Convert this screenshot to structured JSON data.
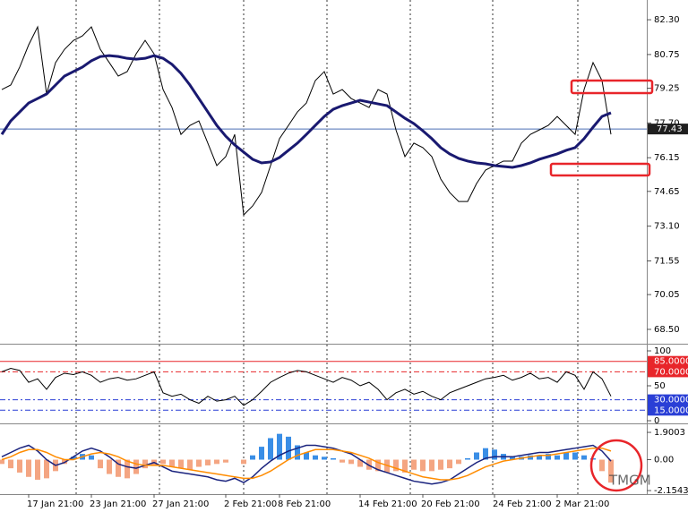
{
  "chart_data": [
    {
      "type": "line",
      "categories": [
        null,
        null,
        null,
        "17 Jan 21:00",
        null,
        null,
        null,
        null,
        null,
        null,
        "23 Jan 21:00",
        null,
        null,
        null,
        null,
        null,
        null,
        "27 Jan 21:00",
        null,
        null,
        null,
        null,
        null,
        null,
        null,
        "2 Feb 21:00",
        null,
        null,
        null,
        null,
        null,
        "8 Feb 21:00",
        null,
        null,
        null,
        null,
        null,
        null,
        null,
        null,
        "14 Feb 21:00",
        null,
        null,
        null,
        null,
        null,
        null,
        "20 Feb 21:00",
        null,
        null,
        null,
        null,
        null,
        null,
        null,
        "24 Feb 21:00",
        null,
        null,
        null,
        null,
        null,
        null,
        "2 Mar 21:00",
        null,
        null,
        null,
        null,
        null,
        null
      ],
      "series": [
        {
          "color": "#000000",
          "values": [
            79.19,
            79.39,
            80.19,
            81.18,
            81.98,
            78.99,
            80.39,
            80.98,
            81.38,
            81.58,
            81.98,
            80.98,
            80.39,
            79.79,
            79.99,
            80.78,
            81.38,
            80.78,
            79.19,
            78.39,
            77.19,
            77.59,
            77.79,
            76.8,
            75.8,
            76.2,
            77.19,
            73.6,
            74.0,
            74.6,
            75.8,
            77.0,
            77.59,
            78.19,
            78.59,
            79.59,
            79.99,
            78.99,
            79.19,
            78.79,
            78.59,
            78.39,
            79.19,
            78.99,
            77.39,
            76.2,
            76.8,
            76.6,
            76.2,
            75.2,
            74.6,
            74.2,
            74.2,
            75.0,
            75.6,
            75.8,
            76.0,
            76.0,
            76.8,
            77.19,
            77.39,
            77.59,
            77.99,
            77.59,
            77.19,
            79.19,
            80.39,
            79.59,
            77.19
          ]
        },
        {
          "color": "#191970",
          "values": [
            77.19,
            77.79,
            78.19,
            78.59,
            78.79,
            78.99,
            79.39,
            79.79,
            79.99,
            80.19,
            80.47,
            80.66,
            80.7,
            80.66,
            80.58,
            80.54,
            80.58,
            80.7,
            80.58,
            80.31,
            79.91,
            79.39,
            78.79,
            78.19,
            77.59,
            77.11,
            76.72,
            76.4,
            76.08,
            75.92,
            75.96,
            76.16,
            76.48,
            76.8,
            77.19,
            77.59,
            77.99,
            78.31,
            78.47,
            78.59,
            78.71,
            78.63,
            78.55,
            78.47,
            78.19,
            77.91,
            77.67,
            77.35,
            77.0,
            76.6,
            76.32,
            76.12,
            76.0,
            75.92,
            75.88,
            75.8,
            75.76,
            75.72,
            75.8,
            75.92,
            76.08,
            76.2,
            76.32,
            76.48,
            76.6,
            77.0,
            77.51,
            77.99,
            78.15
          ]
        }
      ],
      "current_price": 77.43,
      "ylim": [
        67.9,
        83.18
      ],
      "yticks": [
        {
          "value": 82.3,
          "label": "82.30"
        },
        80.75,
        79.25,
        {
          "value": 77.7,
          "label": "77.70"
        },
        76.15,
        74.65,
        {
          "value": 73.1,
          "label": "73.10"
        },
        71.55,
        70.05,
        {
          "value": 68.5,
          "label": "68.50"
        }
      ]
    },
    {
      "type": "line",
      "series": [
        {
          "color": "#000000",
          "values": [
            70,
            75,
            72,
            55,
            60,
            45,
            62,
            68,
            66,
            70,
            65,
            55,
            60,
            62,
            58,
            60,
            65,
            70,
            40,
            35,
            38,
            30,
            25,
            35,
            28,
            30,
            35,
            22,
            30,
            42,
            55,
            62,
            68,
            72,
            70,
            65,
            60,
            55,
            62,
            58,
            50,
            55,
            45,
            30,
            40,
            45,
            38,
            42,
            35,
            30,
            40,
            45,
            50,
            55,
            60,
            62,
            65,
            58,
            62,
            68,
            60,
            62,
            55,
            70,
            65,
            45,
            70,
            60,
            35
          ]
        }
      ],
      "ylim": [
        0,
        100
      ],
      "yticks": [
        100,
        50,
        0
      ],
      "levels": [
        {
          "value": 85,
          "label": "85.0000",
          "color": "#e8252a"
        },
        {
          "value": 70,
          "label": "70.0000",
          "color": "#e8252a"
        },
        {
          "value": 30,
          "label": "30.0000",
          "color": "#2a3fd6"
        },
        {
          "value": 15,
          "label": "15.0000",
          "color": "#2a3fd6"
        }
      ]
    },
    {
      "type": "bar",
      "series": [
        {
          "kind": "bar",
          "color": "#3a8ee6",
          "negative_color": "#f4a582",
          "values": [
            -0.3,
            -0.6,
            -0.9,
            -1.2,
            -1.4,
            -1.3,
            -0.8,
            -0.3,
            0.2,
            0.4,
            0.3,
            -0.6,
            -1.0,
            -1.2,
            -1.3,
            -1.0,
            -0.6,
            -0.4,
            -0.3,
            -0.5,
            -0.6,
            -0.7,
            -0.5,
            -0.4,
            -0.3,
            -0.2,
            0.0,
            -0.3,
            0.3,
            0.9,
            1.5,
            1.8,
            1.6,
            1.0,
            0.5,
            0.3,
            0.2,
            0.1,
            -0.2,
            -0.3,
            -0.5,
            -0.7,
            -0.8,
            -0.9,
            -0.8,
            -0.9,
            -0.7,
            -0.8,
            -0.8,
            -0.7,
            -0.6,
            -0.3,
            0.1,
            0.5,
            0.8,
            0.7,
            0.4,
            0.2,
            0.2,
            0.3,
            0.3,
            0.4,
            0.3,
            0.5,
            0.5,
            0.3,
            0.1,
            -0.8,
            -1.6
          ]
        },
        {
          "kind": "line",
          "color": "#1a237e",
          "values": [
            0.2,
            0.5,
            0.8,
            1.0,
            0.6,
            0.0,
            -0.4,
            -0.2,
            0.2,
            0.6,
            0.8,
            0.6,
            0.2,
            -0.3,
            -0.5,
            -0.6,
            -0.4,
            -0.2,
            -0.5,
            -0.8,
            -0.9,
            -1.0,
            -1.1,
            -1.2,
            -1.4,
            -1.5,
            -1.3,
            -1.6,
            -1.2,
            -0.6,
            -0.1,
            0.3,
            0.6,
            0.8,
            1.0,
            1.0,
            0.9,
            0.8,
            0.6,
            0.4,
            0.0,
            -0.4,
            -0.7,
            -0.9,
            -1.1,
            -1.3,
            -1.5,
            -1.6,
            -1.7,
            -1.6,
            -1.4,
            -1.0,
            -0.6,
            -0.2,
            0.1,
            0.2,
            0.2,
            0.2,
            0.3,
            0.4,
            0.5,
            0.5,
            0.6,
            0.7,
            0.8,
            0.9,
            1.0,
            0.6,
            -0.1
          ]
        },
        {
          "kind": "line",
          "color": "#ff8c00",
          "values": [
            0.0,
            0.2,
            0.5,
            0.7,
            0.7,
            0.5,
            0.2,
            0.0,
            0.0,
            0.2,
            0.4,
            0.5,
            0.4,
            0.2,
            -0.1,
            -0.3,
            -0.4,
            -0.4,
            -0.4,
            -0.5,
            -0.6,
            -0.7,
            -0.8,
            -0.9,
            -1.0,
            -1.1,
            -1.2,
            -1.3,
            -1.3,
            -1.1,
            -0.8,
            -0.4,
            0.0,
            0.3,
            0.5,
            0.7,
            0.7,
            0.7,
            0.6,
            0.5,
            0.3,
            0.1,
            -0.2,
            -0.4,
            -0.6,
            -0.8,
            -1.0,
            -1.2,
            -1.3,
            -1.4,
            -1.4,
            -1.3,
            -1.1,
            -0.8,
            -0.5,
            -0.3,
            -0.1,
            0.0,
            0.1,
            0.2,
            0.3,
            0.3,
            0.4,
            0.5,
            0.6,
            0.7,
            0.8,
            0.8,
            0.6
          ]
        }
      ],
      "ylim": [
        -2.4,
        2.34
      ],
      "yticks": [
        1.9003,
        {
          "value": 0,
          "label": "0.00"
        },
        -2.1543
      ]
    }
  ],
  "watermark": "TMGM"
}
